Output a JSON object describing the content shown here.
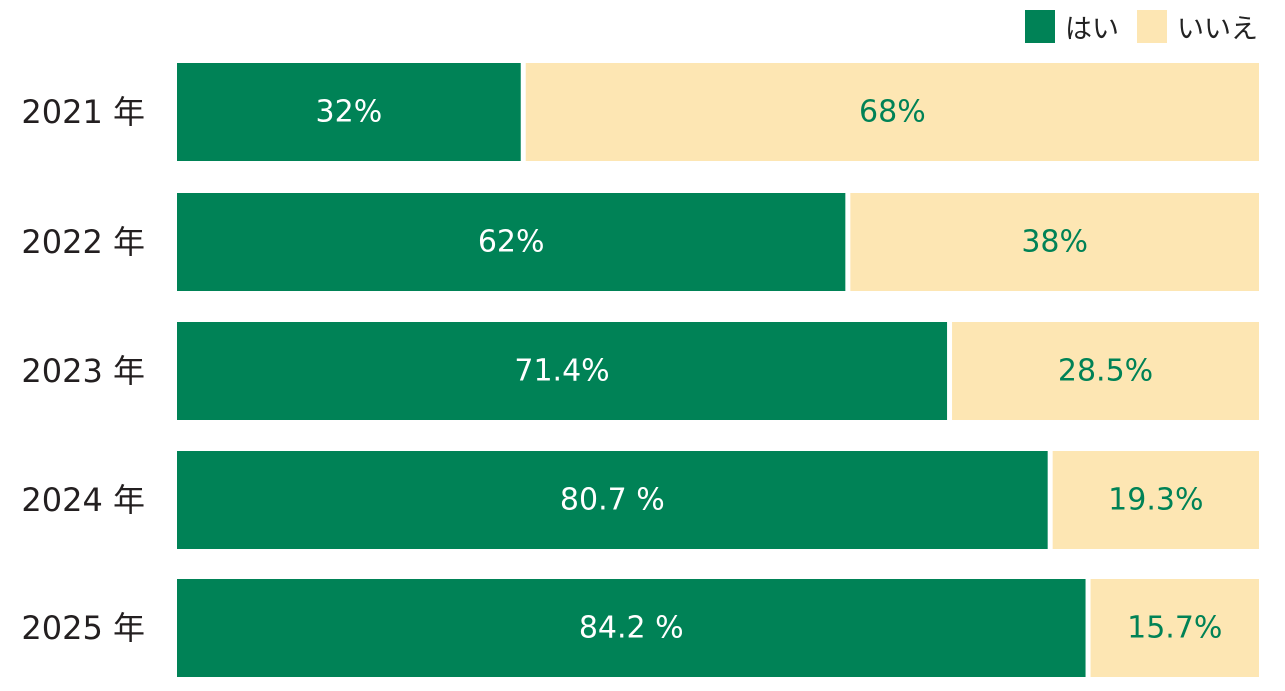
{
  "colors": {
    "yes": "#008256",
    "no": "#fde6b3",
    "yes_text": "#ffffff",
    "no_text": "#008256",
    "label_text": "#231f20"
  },
  "chart_data": {
    "type": "bar",
    "orientation": "horizontal",
    "stacked": true,
    "title": "",
    "xlabel": "",
    "ylabel": "",
    "xlim": [
      0,
      100
    ],
    "grid": false,
    "legend_position": "top-right",
    "categories": [
      "2021 年",
      "2022 年",
      "2023 年",
      "2024 年",
      "2025 年"
    ],
    "series": [
      {
        "name": "はい",
        "values": [
          32,
          62,
          71.4,
          80.7,
          84.2
        ],
        "labels": [
          "32%",
          "62%",
          "71.4%",
          "80.7 %",
          "84.2 %"
        ]
      },
      {
        "name": "いいえ",
        "values": [
          68,
          38,
          28.5,
          19.3,
          15.7
        ],
        "labels": [
          "68%",
          "38%",
          "28.5%",
          "19.3%",
          "15.7%"
        ]
      }
    ]
  }
}
